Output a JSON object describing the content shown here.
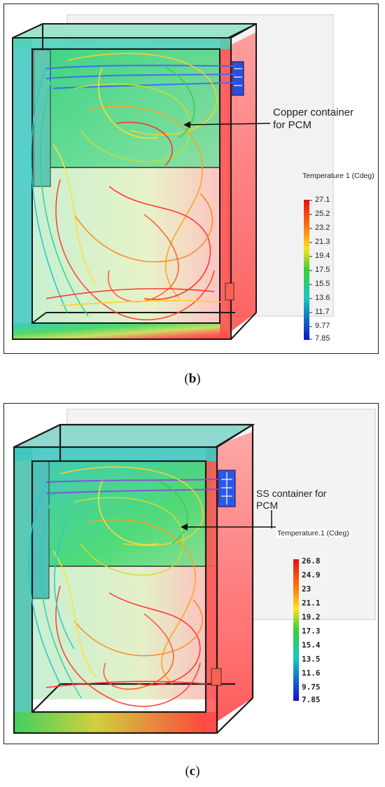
{
  "panel_b": {
    "caption_label": "b",
    "annotation": "Copper container\nfor PCM",
    "legend_title": "Temperature 1 (Cdeg)",
    "ticks": [
      "27.1",
      "25.2",
      "23.2",
      "21.3",
      "19.4",
      "17.5",
      "15.5",
      "13.6",
      "11.7",
      "9.77",
      "7.85"
    ]
  },
  "panel_c": {
    "caption_label": "c",
    "annotation": "SS container for\nPCM",
    "legend_title": "Temperature.1 (Cdeg)",
    "ticks": [
      "26.8",
      "24.9",
      "23",
      "21.1",
      "19.2",
      "17.3",
      "15.4",
      "13.5",
      "11.6",
      "9.75",
      "7.85"
    ]
  },
  "colors": {
    "hot": "#ff3b3b",
    "warm": "#ffd21f",
    "mid": "#36d24a",
    "cool": "#20c8c8",
    "cold": "#1d2ccf"
  }
}
